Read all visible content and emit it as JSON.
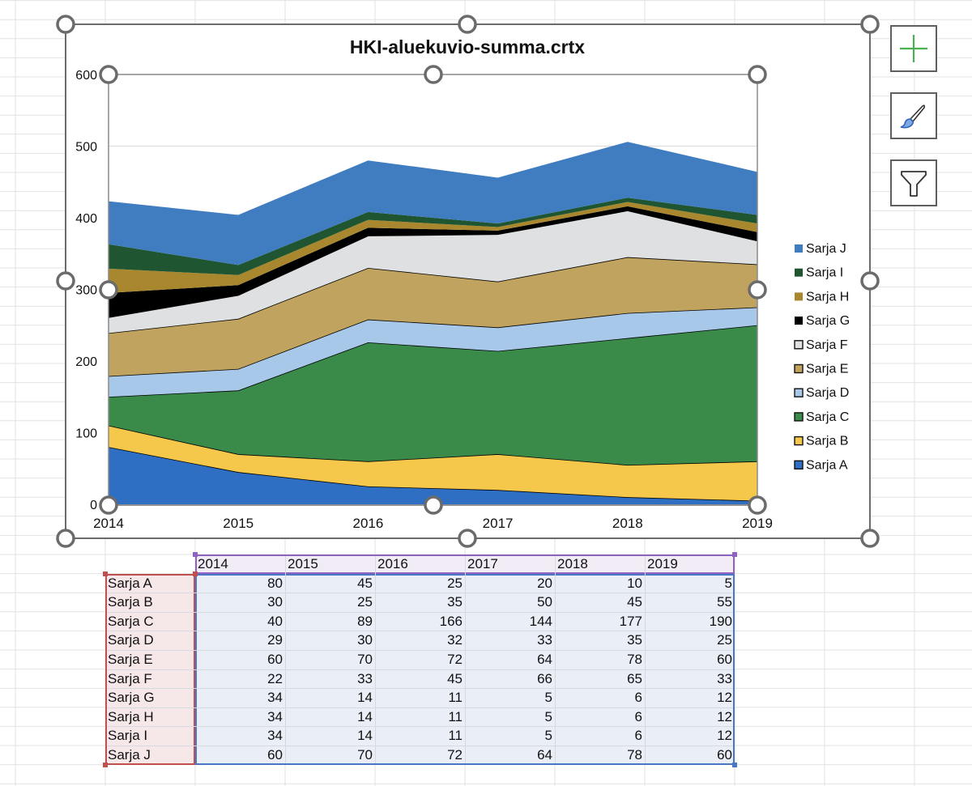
{
  "chart_data": {
    "type": "area",
    "stacked": true,
    "title": "HKI-aluekuvio-summa.crtx",
    "xlabel": "",
    "ylabel": "",
    "categories": [
      "2014",
      "2015",
      "2016",
      "2017",
      "2018",
      "2019"
    ],
    "ylim": [
      0,
      600
    ],
    "yticks": [
      0,
      100,
      200,
      300,
      400,
      500,
      600
    ],
    "grid": true,
    "legend_position": "right",
    "series": [
      {
        "name": "Sarja A",
        "color": "#2e6fc4",
        "outlined": true,
        "values": [
          80,
          45,
          25,
          20,
          10,
          5
        ]
      },
      {
        "name": "Sarja B",
        "color": "#f5c84c",
        "outlined": true,
        "values": [
          30,
          25,
          35,
          50,
          45,
          55
        ]
      },
      {
        "name": "Sarja C",
        "color": "#3a8a4a",
        "outlined": true,
        "values": [
          40,
          89,
          166,
          144,
          177,
          190
        ]
      },
      {
        "name": "Sarja D",
        "color": "#a8c8ea",
        "outlined": true,
        "values": [
          29,
          30,
          32,
          33,
          35,
          25
        ]
      },
      {
        "name": "Sarja E",
        "color": "#c0a35e",
        "outlined": true,
        "values": [
          60,
          70,
          72,
          64,
          78,
          60
        ]
      },
      {
        "name": "Sarja F",
        "color": "#dfe0e2",
        "outlined": true,
        "values": [
          22,
          33,
          45,
          66,
          65,
          33
        ]
      },
      {
        "name": "Sarja G",
        "color": "#000000",
        "outlined": false,
        "values": [
          34,
          14,
          11,
          5,
          6,
          12
        ]
      },
      {
        "name": "Sarja H",
        "color": "#a9872f",
        "outlined": false,
        "values": [
          34,
          14,
          11,
          5,
          6,
          12
        ]
      },
      {
        "name": "Sarja I",
        "color": "#1f5530",
        "outlined": false,
        "values": [
          34,
          14,
          11,
          5,
          6,
          12
        ]
      },
      {
        "name": "Sarja J",
        "color": "#3f7cc0",
        "outlined": false,
        "values": [
          60,
          70,
          72,
          64,
          78,
          60
        ]
      }
    ]
  },
  "side_buttons": {
    "add_element": "chart-elements",
    "style": "chart-styles",
    "filter": "chart-filters"
  },
  "sheet": {
    "header_row": [
      "2014",
      "2015",
      "2016",
      "2017",
      "2018",
      "2019"
    ],
    "rows": [
      {
        "label": "Sarja A",
        "values": [
          "80",
          "45",
          "25",
          "20",
          "10",
          "5"
        ]
      },
      {
        "label": "Sarja B",
        "values": [
          "30",
          "25",
          "35",
          "50",
          "45",
          "55"
        ]
      },
      {
        "label": "Sarja C",
        "values": [
          "40",
          "89",
          "166",
          "144",
          "177",
          "190"
        ]
      },
      {
        "label": "Sarja D",
        "values": [
          "29",
          "30",
          "32",
          "33",
          "35",
          "25"
        ]
      },
      {
        "label": "Sarja E",
        "values": [
          "60",
          "70",
          "72",
          "64",
          "78",
          "60"
        ]
      },
      {
        "label": "Sarja F",
        "values": [
          "22",
          "33",
          "45",
          "66",
          "65",
          "33"
        ]
      },
      {
        "label": "Sarja G",
        "values": [
          "34",
          "14",
          "11",
          "5",
          "6",
          "12"
        ]
      },
      {
        "label": "Sarja H",
        "values": [
          "34",
          "14",
          "11",
          "5",
          "6",
          "12"
        ]
      },
      {
        "label": "Sarja I",
        "values": [
          "34",
          "14",
          "11",
          "5",
          "6",
          "12"
        ]
      },
      {
        "label": "Sarja J",
        "values": [
          "60",
          "70",
          "72",
          "64",
          "78",
          "60"
        ]
      }
    ],
    "colors": {
      "series_names_fill": "#f6e8e8",
      "series_names_border": "#c0504d",
      "categories_fill": "#f1ecf6",
      "categories_border": "#8e63c0",
      "values_fill": "#e9eef7",
      "values_border": "#4a76c6"
    }
  }
}
